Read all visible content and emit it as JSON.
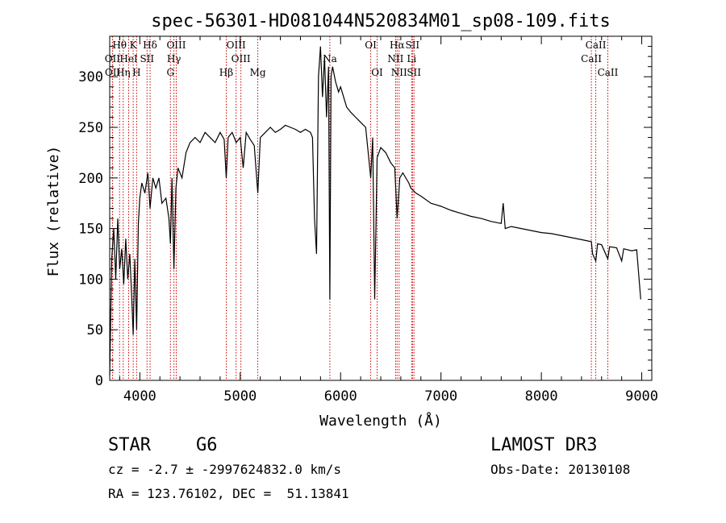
{
  "chart_data": {
    "type": "line",
    "title": "spec-56301-HD081044N520834M01_sp08-109.fits",
    "xlabel": "Wavelength (Å)",
    "ylabel": "Flux (relative)",
    "xlim": [
      3700,
      9100
    ],
    "ylim": [
      0,
      340
    ],
    "xticks": [
      4000,
      5000,
      6000,
      7000,
      8000,
      9000
    ],
    "yticks": [
      0,
      50,
      100,
      150,
      200,
      250,
      300
    ],
    "grid": false,
    "line_color": "#000000",
    "marker_color": "#cc0000",
    "spectral_lines": [
      {
        "label": "Hθ",
        "wave": 3798,
        "row": 0
      },
      {
        "label": "K",
        "wave": 3934,
        "row": 0
      },
      {
        "label": "Hδ",
        "wave": 4102,
        "row": 0
      },
      {
        "label": "OIII",
        "wave": 4363,
        "row": 0
      },
      {
        "label": "OIII",
        "wave": 4959,
        "row": 0
      },
      {
        "label": "OI",
        "wave": 6300,
        "row": 0
      },
      {
        "label": "Hα",
        "wave": 6563,
        "row": 0
      },
      {
        "label": "SII",
        "wave": 6716,
        "row": 0
      },
      {
        "label": "CaII",
        "wave": 8542,
        "row": 0
      },
      {
        "label": "OII",
        "wave": 3727,
        "row": 1
      },
      {
        "label": "HeI",
        "wave": 3889,
        "row": 1
      },
      {
        "label": "SII",
        "wave": 4072,
        "row": 1
      },
      {
        "label": "Hγ",
        "wave": 4340,
        "row": 1
      },
      {
        "label": "OIII",
        "wave": 5007,
        "row": 1
      },
      {
        "label": "Na",
        "wave": 5893,
        "row": 1
      },
      {
        "label": "NII",
        "wave": 6548,
        "row": 1
      },
      {
        "label": "Li",
        "wave": 6708,
        "row": 1
      },
      {
        "label": "CaII",
        "wave": 8498,
        "row": 1
      },
      {
        "label": "OII",
        "wave": 3729,
        "row": 2
      },
      {
        "label": "Hη",
        "wave": 3835,
        "row": 2
      },
      {
        "label": "H",
        "wave": 3968,
        "row": 2
      },
      {
        "label": "G",
        "wave": 4305,
        "row": 2
      },
      {
        "label": "Hβ",
        "wave": 4861,
        "row": 2
      },
      {
        "label": "Mg",
        "wave": 5175,
        "row": 2
      },
      {
        "label": "OI",
        "wave": 6364,
        "row": 2
      },
      {
        "label": "NII",
        "wave": 6583,
        "row": 2
      },
      {
        "label": "SII",
        "wave": 6731,
        "row": 2
      },
      {
        "label": "CaII",
        "wave": 8662,
        "row": 2
      }
    ],
    "spectrum": [
      [
        3700,
        5
      ],
      [
        3720,
        120
      ],
      [
        3740,
        150
      ],
      [
        3760,
        100
      ],
      [
        3780,
        160
      ],
      [
        3800,
        110
      ],
      [
        3820,
        130
      ],
      [
        3840,
        95
      ],
      [
        3860,
        140
      ],
      [
        3880,
        100
      ],
      [
        3900,
        125
      ],
      [
        3920,
        80
      ],
      [
        3934,
        45
      ],
      [
        3950,
        120
      ],
      [
        3968,
        50
      ],
      [
        3985,
        155
      ],
      [
        4000,
        180
      ],
      [
        4020,
        195
      ],
      [
        4050,
        185
      ],
      [
        4080,
        205
      ],
      [
        4102,
        170
      ],
      [
        4130,
        200
      ],
      [
        4160,
        190
      ],
      [
        4190,
        200
      ],
      [
        4220,
        175
      ],
      [
        4260,
        180
      ],
      [
        4290,
        160
      ],
      [
        4305,
        135
      ],
      [
        4320,
        200
      ],
      [
        4340,
        110
      ],
      [
        4360,
        190
      ],
      [
        4380,
        210
      ],
      [
        4420,
        200
      ],
      [
        4460,
        225
      ],
      [
        4500,
        235
      ],
      [
        4550,
        240
      ],
      [
        4600,
        235
      ],
      [
        4650,
        245
      ],
      [
        4700,
        240
      ],
      [
        4750,
        235
      ],
      [
        4800,
        245
      ],
      [
        4840,
        238
      ],
      [
        4861,
        200
      ],
      [
        4880,
        240
      ],
      [
        4920,
        245
      ],
      [
        4960,
        235
      ],
      [
        5000,
        240
      ],
      [
        5030,
        210
      ],
      [
        5060,
        245
      ],
      [
        5100,
        238
      ],
      [
        5140,
        232
      ],
      [
        5175,
        185
      ],
      [
        5200,
        240
      ],
      [
        5250,
        245
      ],
      [
        5300,
        250
      ],
      [
        5350,
        245
      ],
      [
        5400,
        248
      ],
      [
        5450,
        252
      ],
      [
        5500,
        250
      ],
      [
        5550,
        248
      ],
      [
        5600,
        245
      ],
      [
        5650,
        248
      ],
      [
        5700,
        245
      ],
      [
        5720,
        240
      ],
      [
        5740,
        160
      ],
      [
        5760,
        125
      ],
      [
        5780,
        300
      ],
      [
        5800,
        330
      ],
      [
        5820,
        280
      ],
      [
        5840,
        320
      ],
      [
        5860,
        260
      ],
      [
        5880,
        310
      ],
      [
        5893,
        80
      ],
      [
        5905,
        300
      ],
      [
        5920,
        310
      ],
      [
        5950,
        295
      ],
      [
        5980,
        285
      ],
      [
        6000,
        290
      ],
      [
        6030,
        280
      ],
      [
        6060,
        270
      ],
      [
        6100,
        265
      ],
      [
        6150,
        260
      ],
      [
        6200,
        255
      ],
      [
        6250,
        250
      ],
      [
        6300,
        200
      ],
      [
        6320,
        240
      ],
      [
        6340,
        80
      ],
      [
        6364,
        220
      ],
      [
        6400,
        230
      ],
      [
        6450,
        225
      ],
      [
        6500,
        215
      ],
      [
        6540,
        210
      ],
      [
        6563,
        160
      ],
      [
        6590,
        200
      ],
      [
        6620,
        205
      ],
      [
        6680,
        195
      ],
      [
        6700,
        190
      ],
      [
        6750,
        185
      ],
      [
        6800,
        182
      ],
      [
        6900,
        175
      ],
      [
        7000,
        172
      ],
      [
        7100,
        168
      ],
      [
        7200,
        165
      ],
      [
        7300,
        162
      ],
      [
        7400,
        160
      ],
      [
        7500,
        157
      ],
      [
        7600,
        155
      ],
      [
        7620,
        175
      ],
      [
        7640,
        150
      ],
      [
        7700,
        152
      ],
      [
        7800,
        150
      ],
      [
        7900,
        148
      ],
      [
        8000,
        146
      ],
      [
        8100,
        145
      ],
      [
        8200,
        143
      ],
      [
        8300,
        141
      ],
      [
        8400,
        139
      ],
      [
        8498,
        137
      ],
      [
        8510,
        125
      ],
      [
        8542,
        118
      ],
      [
        8560,
        135
      ],
      [
        8600,
        134
      ],
      [
        8662,
        120
      ],
      [
        8680,
        132
      ],
      [
        8750,
        131
      ],
      [
        8800,
        118
      ],
      [
        8820,
        130
      ],
      [
        8900,
        128
      ],
      [
        8950,
        129
      ],
      [
        8990,
        80
      ]
    ]
  },
  "info": {
    "object_type": "STAR",
    "subclass": "G6",
    "survey": "LAMOST DR3",
    "redshift": "cz = -2.7 ± -2997624832.0 km/s",
    "obs_date": "Obs-Date: 20130108",
    "coords": "RA = 123.76102, DEC =  51.13841"
  }
}
